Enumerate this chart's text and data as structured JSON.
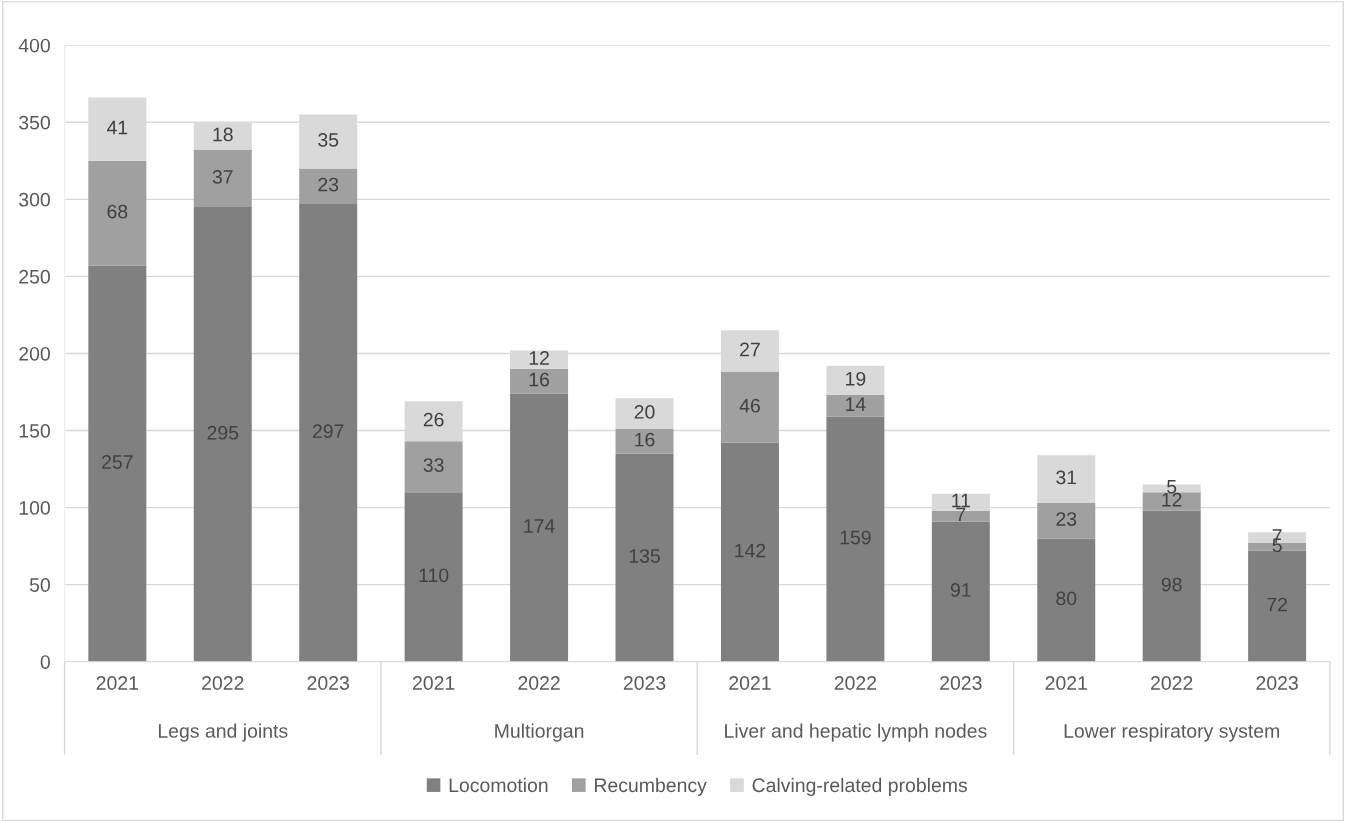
{
  "chart_data": {
    "type": "bar",
    "stacked": true,
    "data_labels": true,
    "grid": "y",
    "legend": "bottom",
    "categories": [
      "2021",
      "2022",
      "2023",
      "2021",
      "2022",
      "2023",
      "2021",
      "2022",
      "2023",
      "2021",
      "2022",
      "2023"
    ],
    "annotations": [
      "Legs and joints",
      "Multiorgan",
      "Liver and hepatic lymph nodes",
      "Lower respiratory system"
    ],
    "series": [
      {
        "name": "Locomotion",
        "color": "#808080",
        "values": [
          257,
          295,
          297,
          110,
          174,
          135,
          142,
          159,
          91,
          80,
          98,
          72
        ]
      },
      {
        "name": "Recumbency",
        "color": "#a0a0a0",
        "values": [
          68,
          37,
          23,
          33,
          16,
          16,
          46,
          14,
          7,
          23,
          12,
          5
        ]
      },
      {
        "name": "Calving-related problems",
        "color": "#d9d9d9",
        "values": [
          41,
          18,
          35,
          26,
          12,
          20,
          27,
          19,
          11,
          31,
          5,
          7
        ]
      }
    ],
    "ylim": [
      0,
      400
    ],
    "yticks": [
      0,
      50,
      100,
      150,
      200,
      250,
      300,
      350,
      400
    ]
  }
}
